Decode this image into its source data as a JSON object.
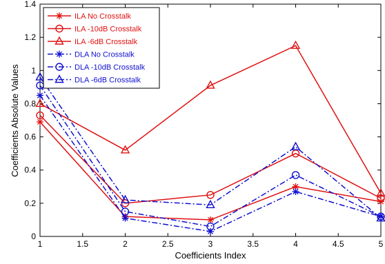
{
  "chart_data": {
    "type": "line",
    "title": "",
    "xlabel": "Coefficients Index",
    "ylabel": "Coefficients Absolute Values",
    "xlim": [
      1,
      5
    ],
    "ylim": [
      0,
      1.4
    ],
    "xticks": [
      "1",
      "1.5",
      "2",
      "2.5",
      "3",
      "3.5",
      "4",
      "4.5",
      "5"
    ],
    "yticks": [
      "0",
      "0.2",
      "0.4",
      "0.6",
      "0.8",
      "1",
      "1.2",
      "1.4"
    ],
    "xtick_values": [
      1,
      1.5,
      2,
      2.5,
      3,
      3.5,
      4,
      4.5,
      5
    ],
    "ytick_values": [
      0,
      0.2,
      0.4,
      0.6,
      0.8,
      1.0,
      1.2,
      1.4
    ],
    "grid": false,
    "legend_position": "top-left",
    "x": [
      1,
      2,
      3,
      4,
      5
    ],
    "series": [
      {
        "name": "ILA No Crosstalk",
        "values": [
          0.69,
          0.12,
          0.1,
          0.3,
          0.21
        ],
        "color": "#e01010",
        "marker": "star",
        "dash": "solid"
      },
      {
        "name": "ILA -10dB Crosstalk",
        "values": [
          0.73,
          0.2,
          0.25,
          0.5,
          0.23
        ],
        "color": "#e01010",
        "marker": "circle",
        "dash": "solid"
      },
      {
        "name": "ILA -6dB Crosstalk",
        "values": [
          0.8,
          0.52,
          0.91,
          1.15,
          0.26
        ],
        "color": "#e01010",
        "marker": "triangle",
        "dash": "solid"
      },
      {
        "name": "DLA No Crosstalk",
        "values": [
          0.85,
          0.11,
          0.03,
          0.27,
          0.12
        ],
        "color": "#1010d0",
        "marker": "star",
        "dash": "dashdot"
      },
      {
        "name": "DLA -10dB Crosstalk",
        "values": [
          0.91,
          0.15,
          0.06,
          0.37,
          0.12
        ],
        "color": "#1010d0",
        "marker": "circle",
        "dash": "dashdot"
      },
      {
        "name": "DLA -6dB Crosstalk",
        "values": [
          0.96,
          0.22,
          0.19,
          0.54,
          0.11
        ],
        "color": "#1010d0",
        "marker": "triangle",
        "dash": "dashdot"
      }
    ]
  }
}
